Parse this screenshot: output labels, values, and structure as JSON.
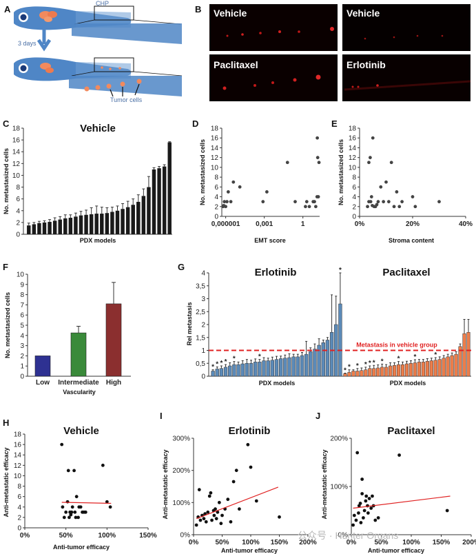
{
  "panels": {
    "A": {
      "letter": "A",
      "chp_label": "CHP",
      "timeline_label": "3 days",
      "tumor_cells_label": "Tumor cells"
    },
    "B": {
      "letter": "B",
      "photos": [
        "Vehicle",
        "Vehicle",
        "Paclitaxel",
        "Erlotinib"
      ]
    }
  },
  "colors": {
    "bar_black": "#1a1a1a",
    "erlotinib_blue": "#5b8ab8",
    "paclitaxel_orange": "#ed7d4a",
    "low_blue": "#2e3192",
    "intermediate_green": "#3a8a3a",
    "high_red": "#8b2f2f",
    "reference_red": "#e02020",
    "fish_blue": "#4f86c6",
    "photo_bg": "#0a0000"
  },
  "chart_data": [
    {
      "panel": "C",
      "type": "bar",
      "title": "Vehicle",
      "xlabel": "PDX models",
      "ylabel": "No. metastasized cells",
      "ylim": [
        0,
        18
      ],
      "yticks": [
        0,
        2,
        4,
        6,
        8,
        10,
        12,
        14,
        16,
        18
      ],
      "values": [
        1.5,
        1.7,
        1.9,
        2.0,
        2.1,
        2.3,
        2.5,
        2.7,
        2.8,
        3.0,
        3.2,
        3.3,
        3.4,
        3.5,
        3.5,
        3.6,
        3.8,
        4.0,
        4.3,
        4.6,
        5.0,
        5.5,
        6.5,
        8.0,
        11.0,
        11.2,
        11.5,
        15.6
      ],
      "errors": [
        0.4,
        0.3,
        0.3,
        0.3,
        0.4,
        0.5,
        0.5,
        0.6,
        0.5,
        0.6,
        0.7,
        0.8,
        1.1,
        1.3,
        1.1,
        0.9,
        0.8,
        0.8,
        0.9,
        1.0,
        1.0,
        1.2,
        1.2,
        1.8,
        0.3,
        0.3,
        0.3,
        0.1
      ]
    },
    {
      "panel": "D",
      "type": "scatter",
      "xlabel": "EMT score",
      "ylabel": "No. metastasized cells",
      "xscale": "log",
      "xlim_log10": [
        -6.3,
        1.3
      ],
      "ylim": [
        0,
        18
      ],
      "yticks": [
        0,
        2,
        4,
        6,
        8,
        10,
        12,
        14,
        16,
        18
      ],
      "xtick_values_log10": [
        -6,
        -3,
        0
      ],
      "xtick_labels": [
        "0,000001",
        "0,001",
        "1"
      ],
      "points": [
        [
          -6.2,
          2
        ],
        [
          -6.1,
          3
        ],
        [
          -6.0,
          2
        ],
        [
          -5.9,
          3
        ],
        [
          -5.8,
          5
        ],
        [
          -5.6,
          3
        ],
        [
          -5.4,
          7
        ],
        [
          -4.9,
          6
        ],
        [
          -3.1,
          3
        ],
        [
          -2.8,
          5
        ],
        [
          -1.2,
          11
        ],
        [
          -0.6,
          3
        ],
        [
          0.2,
          2
        ],
        [
          0.3,
          3
        ],
        [
          0.5,
          2
        ],
        [
          0.8,
          3
        ],
        [
          0.9,
          3
        ],
        [
          1.0,
          2
        ],
        [
          1.1,
          4
        ],
        [
          1.12,
          16
        ],
        [
          1.15,
          12
        ],
        [
          1.2,
          4
        ],
        [
          1.25,
          11
        ],
        [
          -6.15,
          2.2
        ]
      ]
    },
    {
      "panel": "E",
      "type": "scatter",
      "xlabel": "Stroma content",
      "ylabel": "No. metastasized cells",
      "xlim": [
        0,
        40
      ],
      "ylim": [
        0,
        18
      ],
      "yticks": [
        0,
        2,
        4,
        6,
        8,
        10,
        12,
        14,
        16,
        18
      ],
      "xtick_values": [
        0,
        20,
        40
      ],
      "xtick_labels": [
        "0%",
        "20%",
        "40%"
      ],
      "points": [
        [
          3,
          2
        ],
        [
          3.5,
          3
        ],
        [
          3.5,
          11
        ],
        [
          4,
          12
        ],
        [
          4.2,
          3
        ],
        [
          4.5,
          4
        ],
        [
          5,
          16
        ],
        [
          5.5,
          2
        ],
        [
          6,
          2
        ],
        [
          7,
          3
        ],
        [
          8,
          6
        ],
        [
          9,
          3
        ],
        [
          10,
          7
        ],
        [
          11,
          3
        ],
        [
          12,
          11
        ],
        [
          13,
          2
        ],
        [
          14,
          5
        ],
        [
          15,
          2
        ],
        [
          16,
          3
        ],
        [
          20,
          4
        ],
        [
          21,
          2
        ],
        [
          30,
          3
        ],
        [
          4.8,
          2.2
        ],
        [
          6.5,
          2.4
        ]
      ]
    },
    {
      "panel": "F",
      "type": "bar",
      "xlabel": "Vascularity",
      "ylabel": "No. metastasized cells",
      "ylim": [
        0,
        10
      ],
      "yticks": [
        0,
        1,
        2,
        3,
        4,
        5,
        6,
        7,
        8,
        9,
        10
      ],
      "categories": [
        "Low",
        "Intermediate",
        "High"
      ],
      "values": [
        2.0,
        4.25,
        7.1
      ],
      "errors": [
        0,
        0.65,
        2.1
      ]
    },
    {
      "panel": "G",
      "type": "bar",
      "ylabel": "Rel metastasis",
      "ylim": [
        0,
        4
      ],
      "yticks": [
        0,
        0.5,
        1,
        1.5,
        2,
        2.5,
        3,
        3.5,
        4
      ],
      "ytick_labels": [
        "0",
        "0,5",
        "1",
        "1,5",
        "2",
        "2,5",
        "3",
        "3,5",
        "4"
      ],
      "reference_line": 1,
      "reference_label": "Metastasis in vehicle group",
      "significance_marker": "*",
      "series": [
        {
          "name": "Erlotinib",
          "xlabel": "PDX models",
          "values": [
            0.2,
            0.28,
            0.3,
            0.35,
            0.4,
            0.45,
            0.45,
            0.48,
            0.5,
            0.5,
            0.55,
            0.55,
            0.6,
            0.6,
            0.62,
            0.65,
            0.68,
            0.7,
            0.72,
            0.75,
            0.75,
            0.8,
            0.85,
            0.95,
            1.05,
            1.2,
            1.3,
            1.4,
            1.7,
            2.0,
            2.8
          ],
          "errors": [
            0.05,
            0.08,
            0.1,
            0.1,
            0.12,
            0.12,
            0.1,
            0.12,
            0.15,
            0.12,
            0.12,
            0.1,
            0.12,
            0.1,
            0.12,
            0.12,
            0.1,
            0.12,
            0.15,
            0.1,
            0.1,
            0.12,
            0.5,
            0.15,
            0.2,
            0.25,
            0.1,
            0.1,
            1.45,
            1.1,
            1.2
          ],
          "stars": [
            1,
            1,
            1,
            1,
            0,
            1,
            0,
            0,
            0,
            0,
            0,
            1,
            0,
            0,
            0,
            0,
            0,
            0,
            0,
            0,
            0,
            0,
            0,
            0,
            0,
            0,
            0,
            0,
            0,
            0,
            1
          ]
        },
        {
          "name": "Paclitaxel",
          "xlabel": "PDX models",
          "values": [
            0.1,
            0.15,
            0.2,
            0.2,
            0.22,
            0.25,
            0.3,
            0.3,
            0.32,
            0.35,
            0.35,
            0.4,
            0.42,
            0.45,
            0.45,
            0.48,
            0.5,
            0.52,
            0.55,
            0.55,
            0.58,
            0.6,
            0.62,
            0.65,
            0.7,
            0.75,
            0.8,
            0.85,
            1.15,
            1.65,
            1.7
          ],
          "errors": [
            0.02,
            0.1,
            0.05,
            0.1,
            0.1,
            0.1,
            0.1,
            0.12,
            0.12,
            0.12,
            0.1,
            0.12,
            0.1,
            0.12,
            0.1,
            0.1,
            0.1,
            0.12,
            0.1,
            0.1,
            0.1,
            0.1,
            0.1,
            0.1,
            0.1,
            0.1,
            0.1,
            0.1,
            0.1,
            0.55,
            0.5
          ],
          "stars": [
            1,
            1,
            0,
            1,
            0,
            1,
            1,
            1,
            0,
            1,
            0,
            0,
            0,
            1,
            0,
            0,
            0,
            1,
            0,
            0,
            0,
            0,
            1,
            0,
            0,
            0,
            0,
            0,
            0,
            0,
            0
          ]
        }
      ]
    },
    {
      "panel": "H",
      "type": "scatter",
      "title": "Vehicle",
      "xlabel": "Anti-tumor efficacy",
      "ylabel": "Anti-metastatic efficacy",
      "xlim": [
        0,
        150
      ],
      "ylim": [
        0,
        18
      ],
      "yticks": [
        0,
        2,
        4,
        6,
        8,
        10,
        12,
        14,
        16,
        18
      ],
      "xtick_values": [
        0,
        50,
        100,
        150
      ],
      "xtick_labels": [
        "0%",
        "50%",
        "100%",
        "150%"
      ],
      "trend": [
        [
          45,
          4.9
        ],
        [
          105,
          4.7
        ]
      ],
      "points": [
        [
          45,
          16
        ],
        [
          46,
          4
        ],
        [
          48,
          2
        ],
        [
          50,
          3
        ],
        [
          52,
          5
        ],
        [
          53,
          11
        ],
        [
          54,
          2
        ],
        [
          55,
          3
        ],
        [
          57,
          3
        ],
        [
          58,
          4
        ],
        [
          60,
          11
        ],
        [
          61,
          3
        ],
        [
          62,
          2
        ],
        [
          63,
          6
        ],
        [
          65,
          2
        ],
        [
          68,
          4
        ],
        [
          70,
          3
        ],
        [
          72,
          3
        ],
        [
          74,
          3
        ],
        [
          95,
          12
        ],
        [
          100,
          5
        ],
        [
          104,
          4
        ],
        [
          56,
          2.5
        ],
        [
          66,
          4
        ]
      ]
    },
    {
      "panel": "I",
      "type": "scatter",
      "title": "Erlotinib",
      "xlabel": "Anti-tumor efficacy",
      "ylabel": "Anti-metastatic efficacy",
      "xlim": [
        0,
        200
      ],
      "ylim": [
        0,
        300
      ],
      "yticks": [
        0,
        100,
        200,
        300
      ],
      "ytick_labels": [
        "0%",
        "100%",
        "200%",
        "300%"
      ],
      "xtick_values": [
        0,
        50,
        100,
        150,
        200
      ],
      "xtick_labels": [
        "0%",
        "50%",
        "100%",
        "150%",
        "200%"
      ],
      "trend": [
        [
          5,
          50
        ],
        [
          148,
          148
        ]
      ],
      "points": [
        [
          5,
          30
        ],
        [
          8,
          55
        ],
        [
          10,
          140
        ],
        [
          12,
          45
        ],
        [
          15,
          60
        ],
        [
          18,
          50
        ],
        [
          20,
          65
        ],
        [
          22,
          40
        ],
        [
          25,
          70
        ],
        [
          28,
          120
        ],
        [
          30,
          130
        ],
        [
          32,
          45
        ],
        [
          35,
          75
        ],
        [
          36,
          60
        ],
        [
          38,
          80
        ],
        [
          40,
          50
        ],
        [
          42,
          70
        ],
        [
          45,
          100
        ],
        [
          48,
          35
        ],
        [
          50,
          60
        ],
        [
          55,
          80
        ],
        [
          60,
          110
        ],
        [
          65,
          40
        ],
        [
          70,
          165
        ],
        [
          75,
          200
        ],
        [
          80,
          80
        ],
        [
          95,
          280
        ],
        [
          100,
          210
        ],
        [
          110,
          105
        ],
        [
          150,
          55
        ]
      ]
    },
    {
      "panel": "J",
      "type": "scatter",
      "title": "Paclitaxel",
      "xlabel": "Anti-tumor efficacy",
      "ylabel": "Anti-metastatic efficacy",
      "xlim": [
        0,
        200
      ],
      "ylim": [
        0,
        200
      ],
      "yticks": [
        0,
        100,
        200
      ],
      "ytick_labels": [
        "0%",
        "100%",
        "200%"
      ],
      "xtick_values": [
        0,
        50,
        100,
        150,
        200
      ],
      "xtick_labels": [
        "0%",
        "50%",
        "100%",
        "150%",
        "200%"
      ],
      "trend": [
        [
          3,
          55
        ],
        [
          165,
          80
        ]
      ],
      "points": [
        [
          3,
          20
        ],
        [
          5,
          40
        ],
        [
          8,
          30
        ],
        [
          10,
          170
        ],
        [
          12,
          45
        ],
        [
          13,
          60
        ],
        [
          15,
          65
        ],
        [
          16,
          25
        ],
        [
          18,
          115
        ],
        [
          20,
          35
        ],
        [
          22,
          50
        ],
        [
          24,
          70
        ],
        [
          25,
          80
        ],
        [
          27,
          60
        ],
        [
          28,
          45
        ],
        [
          30,
          75
        ],
        [
          33,
          55
        ],
        [
          35,
          80
        ],
        [
          37,
          60
        ],
        [
          40,
          30
        ],
        [
          45,
          35
        ],
        [
          80,
          165
        ],
        [
          160,
          50
        ],
        [
          18,
          85
        ]
      ]
    }
  ],
  "watermark": "公众号 · Hunter Organs"
}
